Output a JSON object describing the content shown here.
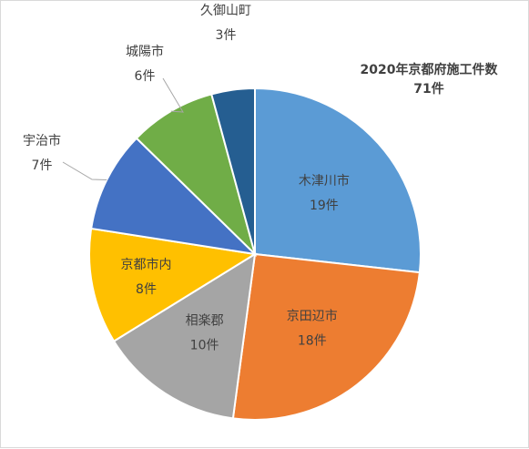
{
  "chart_data": {
    "type": "pie",
    "title": "2020年京都府施工件数",
    "subtitle": "71件",
    "slices": [
      {
        "name": "木津川市",
        "value": 19,
        "value_label": "19件",
        "color": "#5b9bd5"
      },
      {
        "name": "京田辺市",
        "value": 18,
        "value_label": "18件",
        "color": "#ed7d31"
      },
      {
        "name": "相楽郡",
        "value": 10,
        "value_label": "10件",
        "color": "#a5a5a5"
      },
      {
        "name": "京都市内",
        "value": 8,
        "value_label": "8件",
        "color": "#ffc000"
      },
      {
        "name": "宇治市",
        "value": 7,
        "value_label": "7件",
        "color": "#4472c4"
      },
      {
        "name": "城陽市",
        "value": 6,
        "value_label": "6件",
        "color": "#70ad47"
      },
      {
        "name": "久御山町",
        "value": 3,
        "value_label": "3件",
        "color": "#255e91"
      }
    ]
  }
}
